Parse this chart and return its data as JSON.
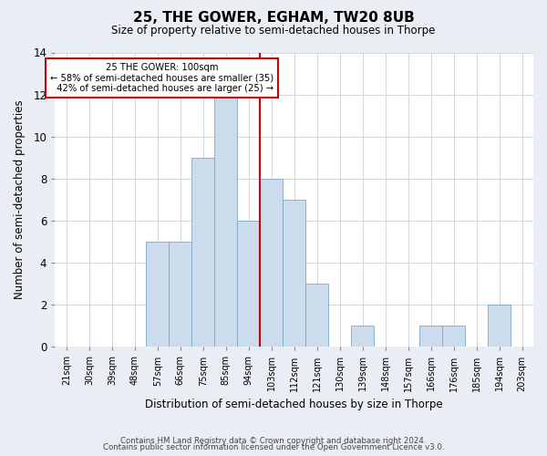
{
  "title": "25, THE GOWER, EGHAM, TW20 8UB",
  "subtitle": "Size of property relative to semi-detached houses in Thorpe",
  "xlabel": "Distribution of semi-detached houses by size in Thorpe",
  "ylabel": "Number of semi-detached properties",
  "footer1": "Contains HM Land Registry data © Crown copyright and database right 2024.",
  "footer2": "Contains public sector information licensed under the Open Government Licence v3.0.",
  "bin_labels": [
    "21sqm",
    "30sqm",
    "39sqm",
    "48sqm",
    "57sqm",
    "66sqm",
    "75sqm",
    "85sqm",
    "94sqm",
    "103sqm",
    "112sqm",
    "121sqm",
    "130sqm",
    "139sqm",
    "148sqm",
    "157sqm",
    "166sqm",
    "176sqm",
    "185sqm",
    "194sqm",
    "203sqm"
  ],
  "bar_values": [
    0,
    0,
    0,
    0,
    5,
    5,
    9,
    12,
    6,
    8,
    7,
    3,
    0,
    1,
    0,
    0,
    1,
    1,
    0,
    2,
    0
  ],
  "bar_color": "#ccdcec",
  "bar_edge_color": "#7aaac8",
  "vline_color": "#cc0000",
  "annotation_box_color": "#ffffff",
  "annotation_box_edge": "#cc0000",
  "ylim": [
    0,
    14
  ],
  "background_color": "#e8eef4",
  "plot_background": "#ffffff",
  "grid_color": "#d0d8e0",
  "smaller_pct": 58,
  "smaller_n": 35,
  "larger_pct": 42,
  "larger_n": 25,
  "property_sqm": 100
}
